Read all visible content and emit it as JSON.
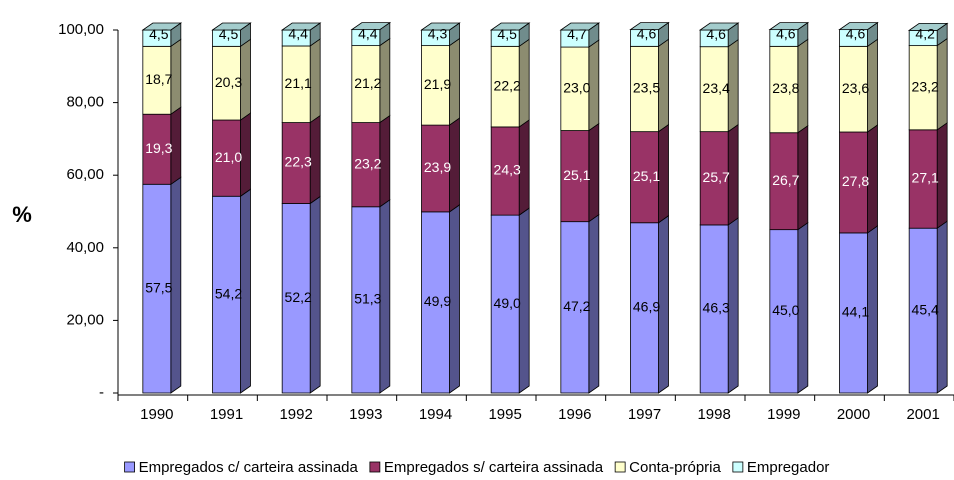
{
  "chart_data": {
    "type": "stacked-bar-3d",
    "y_label": "%",
    "categories": [
      "1990",
      "1991",
      "1992",
      "1993",
      "1994",
      "1995",
      "1996",
      "1997",
      "1998",
      "1999",
      "2000",
      "2001"
    ],
    "series": [
      {
        "name": "Empregados c/ carteira assinada",
        "color": "#9999ff",
        "values": [
          57.5,
          54.2,
          52.2,
          51.3,
          49.9,
          49.0,
          47.2,
          46.9,
          46.3,
          45.0,
          44.1,
          45.4
        ],
        "value_labels": [
          "57,5",
          "54,2",
          "52,2",
          "51,3",
          "49,9",
          "49,0",
          "47,2",
          "46,9",
          "46,3",
          "45,0",
          "44,1",
          "45,4"
        ]
      },
      {
        "name": "Empregados s/ carteira assinada",
        "color": "#993366",
        "values": [
          19.3,
          21.0,
          22.3,
          23.2,
          23.9,
          24.3,
          25.1,
          25.1,
          25.7,
          26.7,
          27.8,
          27.1
        ],
        "value_labels": [
          "19,3",
          "21,0",
          "22,3",
          "23,2",
          "23,9",
          "24,3",
          "25,1",
          "25,1",
          "25,7",
          "26,7",
          "27,8",
          "27,1"
        ]
      },
      {
        "name": "Conta-própria",
        "color": "#ffffcc",
        "values": [
          18.7,
          20.3,
          21.1,
          21.2,
          21.9,
          22.2,
          23.0,
          23.5,
          23.4,
          23.8,
          23.6,
          23.2
        ],
        "value_labels": [
          "18,7",
          "20,3",
          "21,1",
          "21,2",
          "21,9",
          "22,2",
          "23,0",
          "23,5",
          "23,4",
          "23,8",
          "23,6",
          "23,2"
        ]
      },
      {
        "name": "Empregador",
        "color": "#ccffff",
        "values": [
          4.5,
          4.5,
          4.4,
          4.4,
          4.3,
          4.5,
          4.7,
          4.6,
          4.6,
          4.6,
          4.6,
          4.2
        ],
        "value_labels": [
          "4,5",
          "4,5",
          "4,4",
          "4,4",
          "4,3",
          "4,5",
          "4,7",
          "4,6",
          "4,6",
          "4,6",
          "4,6",
          "4,2"
        ]
      }
    ],
    "ylim": [
      0,
      100
    ],
    "yticks": [
      {
        "value": 0,
        "label": "-"
      },
      {
        "value": 20,
        "label": "20,00"
      },
      {
        "value": 40,
        "label": "40,00"
      },
      {
        "value": 60,
        "label": "60,00"
      },
      {
        "value": 80,
        "label": "80,00"
      },
      {
        "value": 100,
        "label": "100,00"
      }
    ],
    "grid": false,
    "legend": "bottom"
  }
}
